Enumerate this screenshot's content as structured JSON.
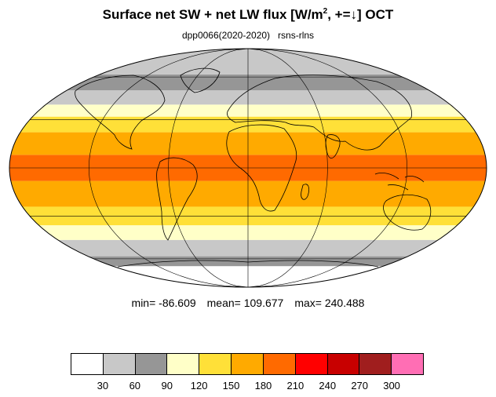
{
  "title": {
    "main": "Surface net SW + net LW flux [W/m",
    "sup": "2",
    "rest": ", +=↓]  OCT"
  },
  "subtitle": {
    "experiment": "dpp0066(2020-2020)",
    "variable": "rsns-rlns"
  },
  "stats": {
    "min": "min= -86.609",
    "mean": "mean= 109.677",
    "max": "max= 240.488"
  },
  "legend": {
    "colors": [
      "#ffffff",
      "#c8c8c8",
      "#969696",
      "#ffffc8",
      "#ffe038",
      "#ffaa00",
      "#ff6a00",
      "#ff0000",
      "#c80000",
      "#a01e1e",
      "#ff6eb4"
    ],
    "ticks": [
      "30",
      "60",
      "90",
      "120",
      "150",
      "180",
      "210",
      "240",
      "270",
      "300"
    ]
  },
  "map": {
    "projection": "mollweide",
    "zonal_bands": [
      {
        "lat_from": -90,
        "lat_to": -66,
        "color": "#ffffff"
      },
      {
        "lat_from": -66,
        "lat_to": -58,
        "color": "#969696"
      },
      {
        "lat_from": -58,
        "lat_to": -46,
        "color": "#c8c8c8"
      },
      {
        "lat_from": -46,
        "lat_to": -36,
        "color": "#ffffc8"
      },
      {
        "lat_from": -36,
        "lat_to": -24,
        "color": "#ffe038"
      },
      {
        "lat_from": -24,
        "lat_to": -8,
        "color": "#ffaa00"
      },
      {
        "lat_from": -8,
        "lat_to": 8,
        "color": "#ff6a00"
      },
      {
        "lat_from": 8,
        "lat_to": 22,
        "color": "#ffaa00"
      },
      {
        "lat_from": 22,
        "lat_to": 32,
        "color": "#ffe038"
      },
      {
        "lat_from": 32,
        "lat_to": 40,
        "color": "#ffffc8"
      },
      {
        "lat_from": 40,
        "lat_to": 50,
        "color": "#c8c8c8"
      },
      {
        "lat_from": 50,
        "lat_to": 62,
        "color": "#969696"
      },
      {
        "lat_from": 62,
        "lat_to": 90,
        "color": "#c8c8c8"
      }
    ]
  }
}
